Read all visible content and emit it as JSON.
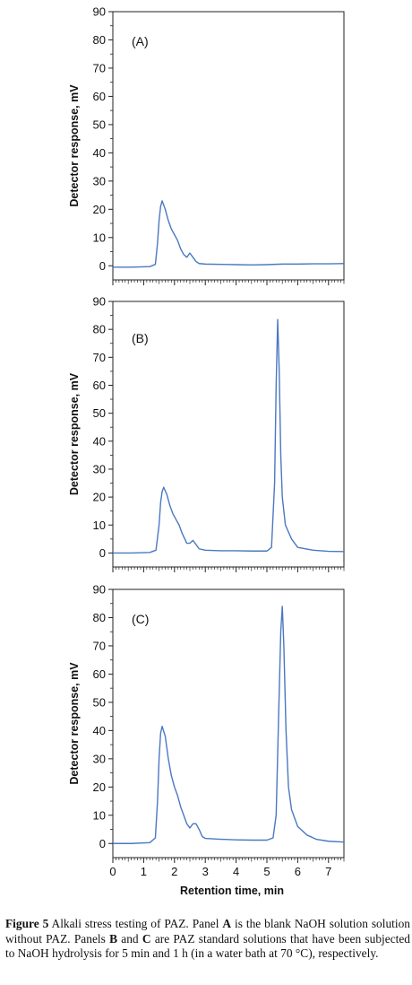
{
  "chart_data": [
    {
      "type": "line",
      "panel_label": "(A)",
      "ylabel": "Detector response, mV",
      "xlabel": "",
      "xlim": [
        0,
        7.5
      ],
      "ylim": [
        -5,
        90
      ],
      "yticks": [
        0,
        10,
        20,
        30,
        40,
        50,
        60,
        70,
        80,
        90
      ],
      "xticks": [],
      "color": "#4a78c2",
      "series": [
        {
          "x": [
            0,
            0.6,
            1.2,
            1.38,
            1.45,
            1.5,
            1.55,
            1.6,
            1.7,
            1.8,
            1.9,
            2.0,
            2.1,
            2.2,
            2.3,
            2.4,
            2.5,
            2.6,
            2.7,
            2.8,
            3.0,
            3.5,
            4.0,
            4.5,
            5.0,
            5.5,
            6.0,
            6.5,
            7.0,
            7.5
          ],
          "y": [
            -0.5,
            -0.5,
            -0.3,
            0.5,
            8,
            16,
            21,
            23,
            20,
            16,
            13,
            11,
            9,
            6,
            4,
            3,
            4.5,
            3,
            1.5,
            0.8,
            0.6,
            0.5,
            0.4,
            0.3,
            0.4,
            0.6,
            0.6,
            0.7,
            0.7,
            0.8
          ]
        }
      ]
    },
    {
      "type": "line",
      "panel_label": "(B)",
      "ylabel": "Detector response, mV",
      "xlabel": "",
      "xlim": [
        0,
        7.5
      ],
      "ylim": [
        -5,
        90
      ],
      "yticks": [
        0,
        10,
        20,
        30,
        40,
        50,
        60,
        70,
        80,
        90
      ],
      "xticks": [],
      "color": "#4a78c2",
      "series": [
        {
          "x": [
            0,
            0.6,
            1.2,
            1.4,
            1.5,
            1.55,
            1.6,
            1.65,
            1.75,
            1.85,
            1.95,
            2.05,
            2.15,
            2.25,
            2.4,
            2.5,
            2.6,
            2.7,
            2.8,
            3.0,
            3.5,
            4.0,
            4.5,
            5.0,
            5.15,
            5.25,
            5.3,
            5.35,
            5.4,
            5.45,
            5.5,
            5.6,
            5.8,
            6.0,
            6.5,
            7.0,
            7.5
          ],
          "y": [
            0,
            0,
            0.2,
            1,
            10,
            18,
            22,
            23.5,
            21,
            17,
            14,
            12,
            10,
            7,
            3.5,
            3.5,
            4.5,
            3,
            1.5,
            1,
            0.8,
            0.8,
            0.7,
            0.7,
            2,
            25,
            60,
            83.5,
            65,
            35,
            20,
            10,
            5,
            2,
            1,
            0.6,
            0.5
          ]
        }
      ]
    },
    {
      "type": "line",
      "panel_label": "(C)",
      "ylabel": "Detector response, mV",
      "xlabel": "Retention time, min",
      "xlim": [
        0,
        7.5
      ],
      "ylim": [
        -5,
        90
      ],
      "yticks": [
        0,
        10,
        20,
        30,
        40,
        50,
        60,
        70,
        80,
        90
      ],
      "xticks": [
        0,
        1,
        2,
        3,
        4,
        5,
        6,
        7
      ],
      "color": "#4a78c2",
      "series": [
        {
          "x": [
            0,
            0.6,
            1.2,
            1.38,
            1.45,
            1.5,
            1.55,
            1.6,
            1.7,
            1.8,
            1.9,
            2.0,
            2.1,
            2.2,
            2.3,
            2.4,
            2.5,
            2.6,
            2.7,
            2.8,
            2.9,
            3.0,
            3.5,
            4.0,
            4.5,
            5.0,
            5.2,
            5.3,
            5.38,
            5.45,
            5.5,
            5.55,
            5.62,
            5.7,
            5.8,
            6.0,
            6.3,
            6.6,
            7.0,
            7.5
          ],
          "y": [
            0,
            0,
            0.3,
            2,
            15,
            30,
            39,
            41.5,
            38,
            30,
            24,
            20,
            17,
            13,
            10,
            7,
            5.5,
            7,
            7,
            5,
            2.5,
            1.8,
            1.5,
            1.3,
            1.2,
            1.2,
            2,
            10,
            45,
            75,
            84,
            70,
            40,
            20,
            12,
            6,
            3,
            1.5,
            0.8,
            0.5
          ]
        }
      ]
    }
  ],
  "caption": {
    "figure_label": "Figure 5",
    "text_1": " Alkali stress testing of PAZ. Panel ",
    "panel_a": "A",
    "text_2": " is the blank NaOH solution solution without PAZ. Panels ",
    "panel_b": "B",
    "text_3": " and ",
    "panel_c": "C",
    "text_4": " are PAZ standard solutions that have been subjected to NaOH hydrolysis for 5 min and 1 h (in a water bath at 70 °C), respectively."
  }
}
